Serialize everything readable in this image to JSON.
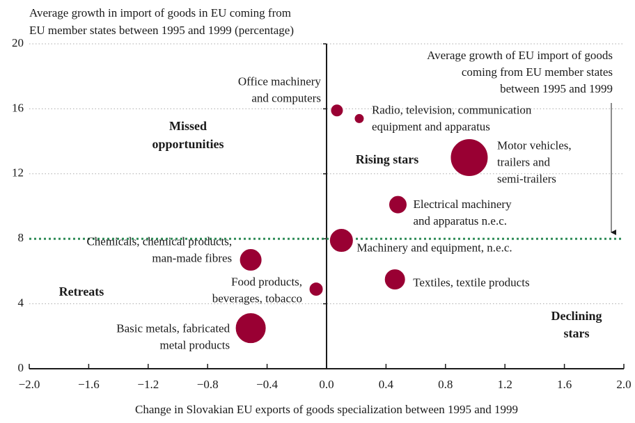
{
  "chart_data": {
    "type": "scatter",
    "y_axis_title": [
      "Average growth in import of goods in EU coming from",
      "EU member states between 1995 and 1999 (percentage)"
    ],
    "x_axis_title": "Change in Slovakian EU exports of goods specialization between 1995 and 1999",
    "xlim": [
      -2.0,
      2.0
    ],
    "xticks": [
      {
        "value": -2.0,
        "label": "−2.0"
      },
      {
        "value": -1.6,
        "label": "−1.6"
      },
      {
        "value": -1.2,
        "label": "−1.2"
      },
      {
        "value": -0.8,
        "label": "−0.8"
      },
      {
        "value": -0.4,
        "label": "−0.4"
      },
      {
        "value": 0,
        "label": "0.0"
      },
      {
        "value": 0.4,
        "label": "0.4"
      },
      {
        "value": 0.8,
        "label": "0.8"
      },
      {
        "value": 1.2,
        "label": "1.2"
      },
      {
        "value": 1.6,
        "label": "1.6"
      },
      {
        "value": 2.0,
        "label": "2.0"
      }
    ],
    "ylim": [
      0,
      20
    ],
    "yticks": [
      0,
      4,
      8,
      12,
      16,
      20
    ],
    "grid": true,
    "color": "#990033",
    "labels": [
      [
        "Office machinery",
        "and computers"
      ],
      [
        "Radio, television, communication",
        "equipment and apparatus"
      ],
      [
        "Motor vehicles,",
        "trailers and",
        "semi-trailers"
      ],
      [
        "Electrical machinery",
        "and apparatus n.e.c."
      ],
      [
        "Machinery and equipment, n.e.c."
      ],
      [
        "Chemicals, chemical products,",
        "man-made fibres"
      ],
      [
        "Food products,",
        "beverages, tobacco"
      ],
      [
        "Textiles, textile products"
      ],
      [
        "Basic metals, fabricated",
        "metal products"
      ]
    ],
    "x": [
      0.07,
      0.22,
      0.96,
      0.48,
      0.1,
      -0.51,
      -0.07,
      0.46,
      -0.51
    ],
    "values": [
      15.9,
      15.4,
      13.0,
      10.1,
      7.9,
      6.7,
      4.9,
      5.5,
      2.5
    ],
    "sizes": [
      9,
      7,
      27,
      13,
      17,
      16,
      10,
      15,
      22
    ],
    "reference_line": {
      "value": 8,
      "color": "#2e8b57",
      "label": [
        "Average growth of EU import of goods",
        "coming from EU member states",
        "between 1995 and 1999"
      ]
    },
    "quadrants": {
      "missed": [
        "Missed",
        "opportunities"
      ],
      "rising": [
        "Rising stars"
      ],
      "retreats": [
        "Retreats"
      ],
      "declining": [
        "Declining",
        "stars"
      ]
    }
  }
}
